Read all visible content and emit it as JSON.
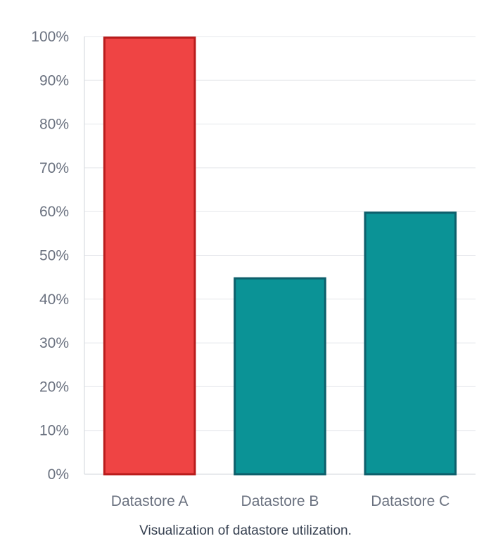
{
  "caption": "Visualization of datastore utilization.",
  "chart_data": {
    "type": "bar",
    "categories": [
      "Datastore A",
      "Datastore B",
      "Datastore C"
    ],
    "values": [
      100,
      45,
      60
    ],
    "ylim": [
      0,
      100
    ],
    "yticks": [
      0,
      10,
      20,
      30,
      40,
      50,
      60,
      70,
      80,
      90,
      100
    ],
    "ytick_labels": [
      "0%",
      "10%",
      "20%",
      "30%",
      "40%",
      "50%",
      "60%",
      "70%",
      "80%",
      "90%",
      "100%"
    ],
    "grid": true,
    "colors": {
      "highlight_fill": "#ef4444",
      "highlight_stroke": "#b91c1c",
      "normal_fill": "#0b9396",
      "normal_stroke": "#0d5f6b"
    },
    "highlight_index": 0
  }
}
